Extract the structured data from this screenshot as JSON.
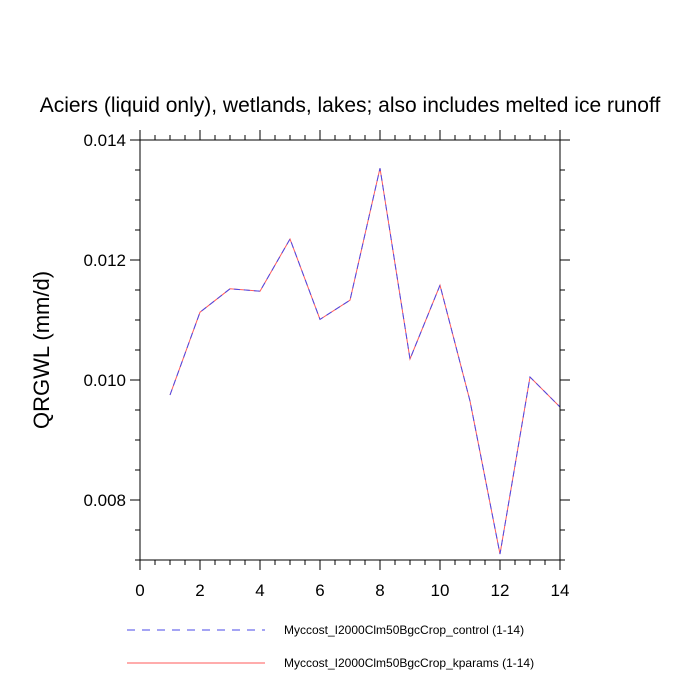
{
  "chart_data": {
    "type": "line",
    "title": "Aciers (liquid only), wetlands, lakes; also includes melted ice runoff",
    "xlabel": "",
    "ylabel": "QRGWL  (mm/d)",
    "xlim": [
      0,
      14
    ],
    "ylim": [
      0.007,
      0.014
    ],
    "x_ticks": [
      0,
      2,
      4,
      6,
      8,
      10,
      12,
      14
    ],
    "x_tick_labels": [
      "0",
      "2",
      "4",
      "6",
      "8",
      "10",
      "12",
      "14"
    ],
    "y_ticks": [
      0.008,
      0.01,
      0.012,
      0.014
    ],
    "y_tick_labels": [
      "0.008",
      "0.010",
      "0.012",
      "0.014"
    ],
    "grid": false,
    "legend_position": "bottom",
    "series": [
      {
        "name": "Myccost_I2000Clm50BgcCrop_control (1-14)",
        "color": "#4a4ae8",
        "style": "dashed",
        "x": [
          1,
          2,
          3,
          4,
          5,
          6,
          7,
          8,
          9,
          10,
          11,
          12,
          13,
          14
        ],
        "y": [
          0.00975,
          0.01113,
          0.01152,
          0.01148,
          0.01235,
          0.01101,
          0.01133,
          0.01353,
          0.01035,
          0.01158,
          0.00965,
          0.0071,
          0.01005,
          0.00955
        ]
      },
      {
        "name": "Myccost_I2000Clm50BgcCrop_kparams (1-14)",
        "color": "#ff5a5a",
        "style": "solid",
        "x": [
          1,
          2,
          3,
          4,
          5,
          6,
          7,
          8,
          9,
          10,
          11,
          12,
          13,
          14
        ],
        "y": [
          0.00975,
          0.01113,
          0.01152,
          0.01148,
          0.01235,
          0.01101,
          0.01133,
          0.01353,
          0.01035,
          0.01158,
          0.00965,
          0.0071,
          0.01005,
          0.00955
        ]
      }
    ]
  }
}
